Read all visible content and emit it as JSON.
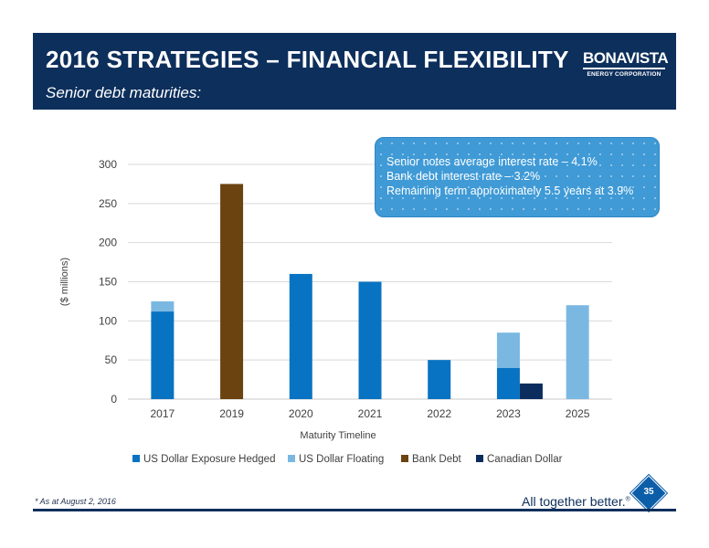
{
  "header": {
    "title": "2016 STRATEGIES – FINANCIAL FLEXIBILITY",
    "subtitle": "Senior debt maturities:",
    "logo_main": "BONAVISTA",
    "logo_sub": "ENERGY CORPORATION"
  },
  "callout": {
    "lines": [
      "Senior notes average interest rate – 4.1%",
      "Bank debt interest rate – 3.2%",
      "Remaining term approximately 5.5 years at 3.9%"
    ]
  },
  "footer": {
    "footnote": "* As at August 2, 2016",
    "tagline": "All together better.",
    "tagline_mark": "®",
    "page_number": "35"
  },
  "colors": {
    "header_bg": "#0d2f5c",
    "us_hedged": "#0873c2",
    "us_floating": "#7ab8e2",
    "bank_debt": "#6b4310",
    "canadian": "#0a2d5e"
  },
  "chart_data": {
    "type": "bar",
    "stacked": true,
    "categories": [
      "2017",
      "2019",
      "2020",
      "2021",
      "2022",
      "2023",
      "2025"
    ],
    "series": [
      {
        "name": "US Dollar Exposure Hedged",
        "color": "#0873c2",
        "values": [
          112,
          0,
          160,
          150,
          50,
          40,
          0
        ]
      },
      {
        "name": "US Dollar Floating",
        "color": "#7ab8e2",
        "values": [
          13,
          0,
          0,
          0,
          0,
          45,
          120
        ]
      },
      {
        "name": "Bank Debt",
        "color": "#6b4310",
        "values": [
          0,
          275,
          0,
          0,
          0,
          0,
          0
        ]
      },
      {
        "name": "Canadian Dollar",
        "color": "#0a2d5e",
        "values": [
          0,
          0,
          0,
          0,
          0,
          20,
          0
        ],
        "offset_group": true
      }
    ],
    "xlabel": "Maturity Timeline",
    "ylabel": "($ millions)",
    "ylim": [
      0,
      300
    ],
    "yticks": [
      0,
      50,
      100,
      150,
      200,
      250,
      300
    ],
    "grid": true,
    "legend": "bottom"
  }
}
